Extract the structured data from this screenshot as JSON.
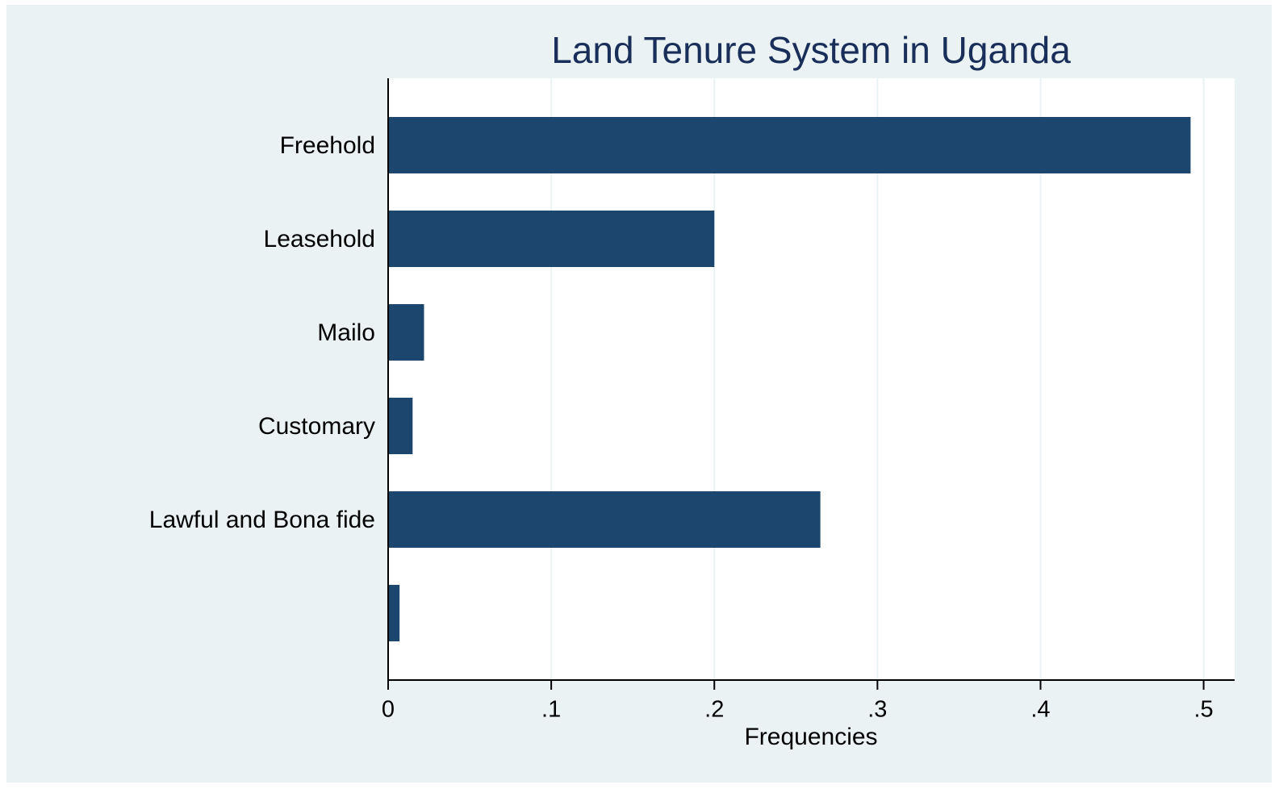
{
  "chart_data": {
    "type": "bar",
    "orientation": "horizontal",
    "title": "Land Tenure System in Uganda",
    "x_label": "Frequencies",
    "categories": [
      "Freehold",
      "Leasehold",
      "Mailo",
      "Customary",
      "Lawful and Bona fide",
      null
    ],
    "values": [
      0.492,
      0.2,
      0.022,
      0.015,
      0.265,
      0.007
    ],
    "color": "#1c466e",
    "xlim": [
      0,
      0.519
    ],
    "xticks": [
      0,
      {
        "value": 0.1,
        "label": ".1"
      },
      {
        "value": 0.2,
        "label": ".2"
      },
      {
        "value": 0.3,
        "label": ".3"
      },
      {
        "value": 0.4,
        "label": ".4"
      },
      {
        "value": 0.5,
        "label": ".5"
      }
    ],
    "grid": true
  }
}
